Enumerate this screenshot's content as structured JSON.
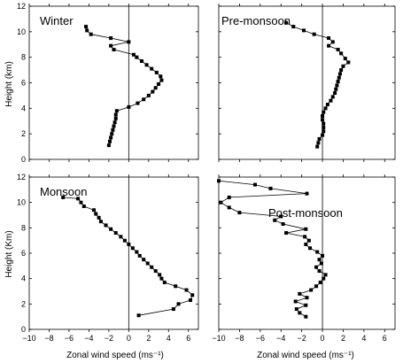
{
  "figure": {
    "ylabel_top": "Height (km)",
    "ylabel_bottom": "Height (Km)",
    "xlabel": "Zonal wind speed (ms⁻¹)"
  },
  "chart_data": [
    {
      "type": "line",
      "title": "Winter",
      "xlim": [
        -10,
        7
      ],
      "ylim": [
        0,
        12
      ],
      "xticks": [
        -10,
        -8,
        -6,
        -4,
        -2,
        0,
        2,
        4,
        6
      ],
      "yticks": [
        0,
        2,
        4,
        6,
        8,
        10,
        12
      ],
      "reference_line_x": 0,
      "points": [
        [
          -2.0,
          1.1
        ],
        [
          -1.9,
          1.4
        ],
        [
          -1.8,
          1.7
        ],
        [
          -1.7,
          2.0
        ],
        [
          -1.6,
          2.3
        ],
        [
          -1.5,
          2.6
        ],
        [
          -1.4,
          2.9
        ],
        [
          -1.3,
          3.2
        ],
        [
          -1.3,
          3.5
        ],
        [
          -1.2,
          3.8
        ],
        [
          0.0,
          4.1
        ],
        [
          0.9,
          4.4
        ],
        [
          1.5,
          4.7
        ],
        [
          2.0,
          5.0
        ],
        [
          2.4,
          5.3
        ],
        [
          2.7,
          5.6
        ],
        [
          3.0,
          5.9
        ],
        [
          3.3,
          6.2
        ],
        [
          3.2,
          6.5
        ],
        [
          2.8,
          6.8
        ],
        [
          2.3,
          7.1
        ],
        [
          1.8,
          7.4
        ],
        [
          1.3,
          7.7
        ],
        [
          0.8,
          8.0
        ],
        [
          0.5,
          8.2
        ],
        [
          -1.5,
          8.6
        ],
        [
          -1.8,
          8.9
        ],
        [
          0.0,
          9.2
        ],
        [
          -1.8,
          9.5
        ],
        [
          -3.8,
          9.8
        ],
        [
          -4.2,
          10.1
        ],
        [
          -4.3,
          10.4
        ]
      ]
    },
    {
      "type": "line",
      "title": "Pre-monsoon",
      "xlim": [
        -10,
        7
      ],
      "ylim": [
        0,
        12
      ],
      "xticks": [
        -10,
        -8,
        -6,
        -4,
        -2,
        0,
        2,
        4,
        6
      ],
      "yticks": [
        0,
        2,
        4,
        6,
        8,
        10,
        12
      ],
      "reference_line_x": 0,
      "points": [
        [
          -0.5,
          1.0
        ],
        [
          -0.4,
          1.3
        ],
        [
          -0.3,
          1.6
        ],
        [
          0.0,
          1.9
        ],
        [
          0.1,
          2.2
        ],
        [
          0.1,
          2.5
        ],
        [
          0.1,
          2.8
        ],
        [
          0.0,
          3.1
        ],
        [
          0.0,
          3.4
        ],
        [
          0.1,
          3.7
        ],
        [
          0.3,
          4.0
        ],
        [
          0.5,
          4.3
        ],
        [
          0.8,
          4.6
        ],
        [
          1.0,
          4.9
        ],
        [
          1.2,
          5.2
        ],
        [
          1.3,
          5.5
        ],
        [
          1.4,
          5.8
        ],
        [
          1.5,
          6.1
        ],
        [
          1.6,
          6.4
        ],
        [
          1.7,
          6.7
        ],
        [
          1.8,
          7.0
        ],
        [
          2.0,
          7.3
        ],
        [
          2.5,
          7.6
        ],
        [
          2.2,
          7.9
        ],
        [
          1.8,
          8.3
        ],
        [
          1.5,
          8.6
        ],
        [
          0.6,
          8.9
        ],
        [
          1.0,
          9.2
        ],
        [
          0.6,
          9.5
        ],
        [
          -0.8,
          9.8
        ],
        [
          -1.8,
          10.1
        ],
        [
          -2.8,
          10.4
        ],
        [
          -3.5,
          10.7
        ]
      ]
    },
    {
      "type": "line",
      "title": "Monsoon",
      "xlim": [
        -10,
        7
      ],
      "ylim": [
        0,
        12
      ],
      "xticks": [
        -10,
        -8,
        -6,
        -4,
        -2,
        0,
        2,
        4,
        6
      ],
      "yticks": [
        0,
        2,
        4,
        6,
        8,
        10,
        12
      ],
      "reference_line_x": 0,
      "points": [
        [
          1.0,
          1.1
        ],
        [
          4.5,
          1.6
        ],
        [
          5.0,
          2.0
        ],
        [
          6.2,
          2.3
        ],
        [
          6.4,
          2.7
        ],
        [
          5.8,
          3.1
        ],
        [
          4.7,
          3.4
        ],
        [
          3.6,
          3.7
        ],
        [
          3.3,
          4.0
        ],
        [
          3.1,
          4.3
        ],
        [
          2.7,
          4.6
        ],
        [
          2.3,
          4.9
        ],
        [
          1.9,
          5.2
        ],
        [
          1.5,
          5.5
        ],
        [
          1.1,
          5.8
        ],
        [
          0.8,
          6.1
        ],
        [
          0.4,
          6.4
        ],
        [
          0.0,
          6.7
        ],
        [
          -0.4,
          7.0
        ],
        [
          -0.8,
          7.3
        ],
        [
          -1.3,
          7.6
        ],
        [
          -1.8,
          7.9
        ],
        [
          -2.3,
          8.2
        ],
        [
          -2.8,
          8.5
        ],
        [
          -3.0,
          8.8
        ],
        [
          -3.3,
          9.1
        ],
        [
          -3.5,
          9.4
        ],
        [
          -4.5,
          9.7
        ],
        [
          -4.8,
          10.0
        ],
        [
          -5.1,
          10.3
        ],
        [
          -6.6,
          10.4
        ]
      ]
    },
    {
      "type": "line",
      "title": "Post-monsoon",
      "xlim": [
        -10,
        7
      ],
      "ylim": [
        0,
        12
      ],
      "xticks": [
        -10,
        -8,
        -6,
        -4,
        -2,
        0,
        2,
        4,
        6
      ],
      "yticks": [
        0,
        2,
        4,
        6,
        8,
        10,
        12
      ],
      "reference_line_x": 0,
      "points": [
        [
          -1.6,
          1.0
        ],
        [
          -2.2,
          1.3
        ],
        [
          -2.5,
          1.6
        ],
        [
          -1.6,
          1.9
        ],
        [
          -2.6,
          2.2
        ],
        [
          -1.5,
          2.5
        ],
        [
          -2.2,
          2.8
        ],
        [
          -1.1,
          3.1
        ],
        [
          -0.6,
          3.4
        ],
        [
          -0.2,
          3.7
        ],
        [
          0.1,
          4.0
        ],
        [
          0.3,
          4.3
        ],
        [
          -0.3,
          4.6
        ],
        [
          -0.6,
          4.9
        ],
        [
          -0.1,
          5.2
        ],
        [
          -0.3,
          5.5
        ],
        [
          0.0,
          5.8
        ],
        [
          -0.5,
          6.1
        ],
        [
          -1.2,
          6.4
        ],
        [
          -1.6,
          6.7
        ],
        [
          -1.3,
          7.0
        ],
        [
          -1.7,
          7.3
        ],
        [
          -3.5,
          7.6
        ],
        [
          -1.6,
          7.9
        ],
        [
          -3.8,
          8.3
        ],
        [
          -4.6,
          8.6
        ],
        [
          -4.0,
          8.9
        ],
        [
          -8.0,
          9.2
        ],
        [
          -9.0,
          9.6
        ],
        [
          -9.8,
          10.0
        ],
        [
          -9.0,
          10.4
        ],
        [
          -1.5,
          10.7
        ],
        [
          -5.0,
          11.1
        ],
        [
          -6.5,
          11.4
        ],
        [
          -10.0,
          11.7
        ]
      ]
    }
  ]
}
